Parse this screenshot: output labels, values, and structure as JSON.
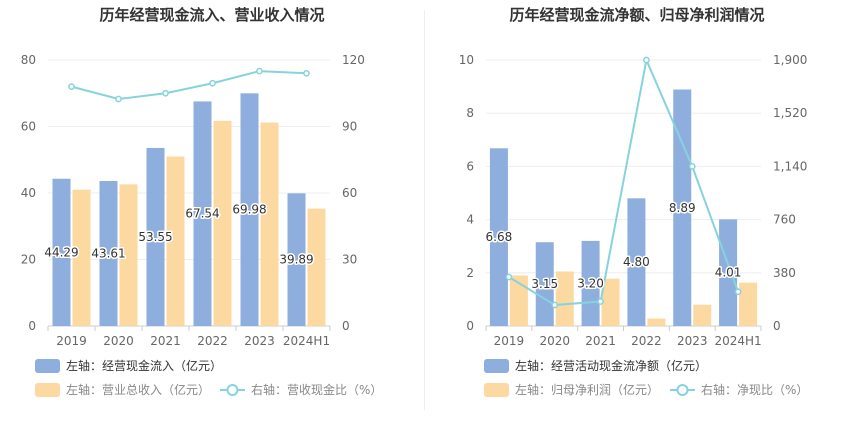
{
  "chart_data": [
    {
      "type": "bar",
      "title": "历年经营现金流入、营业收入情况",
      "categories": [
        "2019",
        "2020",
        "2021",
        "2022",
        "2023",
        "2024H1"
      ],
      "left_axis": {
        "ticks": [
          "0",
          "20",
          "40",
          "60",
          "80"
        ],
        "min": 0,
        "max": 80
      },
      "right_axis": {
        "ticks": [
          "0",
          "30",
          "60",
          "90",
          "120"
        ],
        "min": 0,
        "max": 120
      },
      "series": [
        {
          "name": "左轴：经营现金流入（亿元）",
          "axis": "left",
          "kind": "bar",
          "color": "#8eaedd",
          "values": [
            44.29,
            43.61,
            53.55,
            67.54,
            69.98,
            39.89
          ],
          "labels": [
            "44.29",
            "43.61",
            "53.55",
            "67.54",
            "69.98",
            "39.89"
          ]
        },
        {
          "name": "左轴：营业总收入（亿元）",
          "axis": "left",
          "kind": "bar",
          "color": "#fcd9a0",
          "values": [
            41,
            42.6,
            51,
            61.7,
            61.2,
            35.3
          ]
        },
        {
          "name": "右轴：营收现金比（%）",
          "axis": "right",
          "kind": "line",
          "color": "#86d3de",
          "values": [
            108,
            102.4,
            105,
            109.5,
            115,
            114
          ]
        }
      ],
      "legend_placement": "bottom-left",
      "grid": true
    },
    {
      "type": "bar",
      "title": "历年经营现金流净额、归母净利润情况",
      "categories": [
        "2019",
        "2020",
        "2021",
        "2022",
        "2023",
        "2024H1"
      ],
      "left_axis": {
        "ticks": [
          "0",
          "2",
          "4",
          "6",
          "8",
          "10"
        ],
        "min": 0,
        "max": 10
      },
      "right_axis": {
        "ticks": [
          "0",
          "380",
          "760",
          "1,140",
          "1,520",
          "1,900"
        ],
        "min": 0,
        "max": 1900
      },
      "series": [
        {
          "name": "左轴：经营活动现金流净额（亿元）",
          "axis": "left",
          "kind": "bar",
          "color": "#8eaedd",
          "values": [
            6.68,
            3.15,
            3.2,
            4.8,
            8.89,
            4.01
          ],
          "labels": [
            "6.68",
            "3.15",
            "3.20",
            "4.80",
            "8.89",
            "4.01"
          ]
        },
        {
          "name": "左轴：归母净利润（亿元）",
          "axis": "left",
          "kind": "bar",
          "color": "#fcd9a0",
          "values": [
            1.9,
            2.05,
            1.78,
            0.28,
            0.8,
            1.63
          ]
        },
        {
          "name": "右轴：净现比（%）",
          "axis": "right",
          "kind": "line",
          "color": "#86d3de",
          "values": [
            350,
            150,
            175,
            1900,
            1140,
            245
          ]
        }
      ],
      "legend_placement": "bottom-left",
      "grid": true
    }
  ]
}
